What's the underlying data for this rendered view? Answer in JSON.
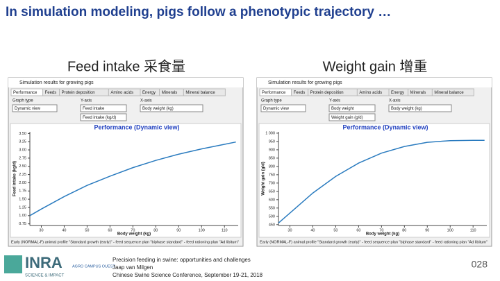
{
  "slide": {
    "title": "In simulation modeling, pigs follow a phenotypic trajectory …",
    "logos": [
      "INRA",
      "SCIENCE & IMPACT",
      "AGRO CAMPUS OUEST"
    ],
    "footer": [
      "Precision feeding in swine: opportunities and challenges",
      "Jaap van Milgen",
      "Chinese Swine Science Conference, September 19-21, 2018"
    ],
    "page_number": "028"
  },
  "chart_data": [
    {
      "type": "line",
      "heading": "Feed intake 采食量",
      "window": {
        "title": "Simulation results for growing pigs",
        "tabs": [
          "Performance",
          "Feeds",
          "Protein deposition",
          "Amino acids",
          "Energy",
          "Minerals",
          "Mineral balance"
        ],
        "labels": [
          "Graph type",
          "Y-axis",
          "X-axis"
        ],
        "selects": [
          "Dynamic view",
          "Feed intake",
          "Feed intake (kg/d)",
          "Body weight (kg)"
        ],
        "status": "Early (NORMAL-F) animal profile \"Standard growth (early)\" - feed sequence plan \"biphase standard\" - feed rationing plan \"Ad libitum\""
      },
      "title": "Performance (Dynamic view)",
      "x_label": "Body weight (kg)",
      "y_label": "Feed intake (kg/d)",
      "x": [
        25,
        30,
        40,
        50,
        60,
        70,
        80,
        90,
        100,
        110,
        115
      ],
      "values": [
        1.0,
        1.2,
        1.58,
        1.92,
        2.2,
        2.46,
        2.68,
        2.87,
        3.03,
        3.17,
        3.24
      ],
      "color": "#2a7bbf",
      "xlim": [
        25,
        116
      ],
      "xticks": [
        30,
        40,
        50,
        60,
        70,
        80,
        90,
        100,
        110
      ],
      "ylim": [
        0.7,
        3.55
      ],
      "yticks": [
        0.75,
        {
          "value": 1,
          "label": "1.00"
        },
        1.25,
        {
          "value": 1.5,
          "label": "1.50"
        },
        1.75,
        {
          "value": 2,
          "label": "2.00"
        },
        2.25,
        {
          "value": 2.5,
          "label": "2.50"
        },
        2.75,
        {
          "value": 3,
          "label": "3.00"
        },
        3.25,
        {
          "value": 3.5,
          "label": "3.50"
        }
      ]
    },
    {
      "type": "line",
      "heading": "Weight gain 增重",
      "window": {
        "title": "Simulation results for growing pigs",
        "tabs": [
          "Performance",
          "Feeds",
          "Protein deposition",
          "Amino acids",
          "Energy",
          "Minerals",
          "Mineral balance"
        ],
        "labels": [
          "Graph type",
          "Y-axis",
          "X-axis"
        ],
        "selects": [
          "Dynamic view",
          "Body weight",
          "Weight gain (g/d)",
          "Body weight (kg)"
        ],
        "status": "Early (NORMAL-F) animal profile \"Standard growth (early)\" - feed sequence plan \"biphase standard\" - feed rationing plan \"Ad libitum\""
      },
      "title": "Performance (Dynamic view)",
      "x_label": "Body weight (kg)",
      "y_label": "Weight gain (g/d)",
      "x": [
        25,
        30,
        40,
        50,
        60,
        70,
        80,
        90,
        100,
        110,
        115
      ],
      "values": [
        460,
        520,
        640,
        740,
        820,
        880,
        920,
        945,
        955,
        957,
        957
      ],
      "color": "#2a7bbf",
      "xlim": [
        25,
        116
      ],
      "xticks": [
        30,
        40,
        50,
        60,
        70,
        80,
        90,
        100,
        110
      ],
      "ylim": [
        445,
        1008
      ],
      "yticks": [
        450,
        500,
        550,
        600,
        650,
        700,
        750,
        800,
        850,
        900,
        950,
        {
          "value": 1000,
          "label": "1 000"
        }
      ]
    }
  ]
}
